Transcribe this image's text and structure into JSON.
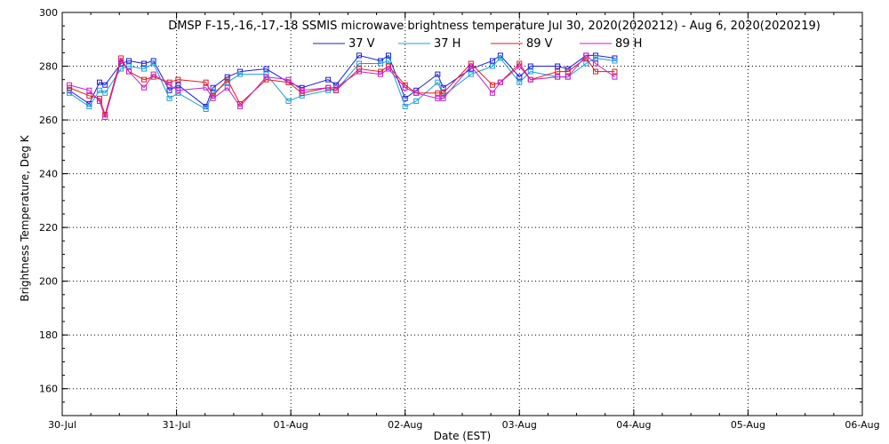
{
  "chart_data": {
    "type": "line",
    "title": "DMSP F-15,-16,-17,-18 SSMIS microwave brightness temperature Jul 30, 2020(2020212) - Aug  6, 2020(2020219)",
    "xlabel": "Date (EST)",
    "ylabel": "Brightness Temperature, Deg K",
    "ylim": [
      150,
      300
    ],
    "yticks": [
      160,
      180,
      200,
      220,
      240,
      260,
      280,
      300
    ],
    "xlim": [
      "2020-07-30 00:00",
      "2020-08-06 00:00"
    ],
    "xticks": [
      "30-Jul",
      "31-Jul",
      "01-Aug",
      "02-Aug",
      "03-Aug",
      "04-Aug",
      "05-Aug",
      "06-Aug"
    ],
    "grid": true,
    "legend": "top-center",
    "colors": {
      "37 V": "#1c1cd8",
      "37 H": "#1aa0dc",
      "89 V": "#e01c1c",
      "89 H": "#c81ec8"
    },
    "x": [
      "2020-07-30 01:30",
      "2020-07-30 05:40",
      "2020-07-30 07:50",
      "2020-07-30 09:00",
      "2020-07-30 12:20",
      "2020-07-30 14:00",
      "2020-07-30 17:10",
      "2020-07-30 19:10",
      "2020-07-30 22:30",
      "2020-07-31 00:20",
      "2020-07-31 06:10",
      "2020-07-31 07:40",
      "2020-07-31 10:40",
      "2020-07-31 13:20",
      "2020-07-31 18:50",
      "2020-07-31 23:30",
      "2020-08-01 02:20",
      "2020-08-01 07:50",
      "2020-08-01 09:30",
      "2020-08-01 14:20",
      "2020-08-01 18:50",
      "2020-08-01 20:30",
      "2020-08-02 00:00",
      "2020-08-02 02:20",
      "2020-08-02 06:50",
      "2020-08-02 08:00",
      "2020-08-02 13:50",
      "2020-08-02 18:20",
      "2020-08-02 20:00",
      "2020-08-03 00:00",
      "2020-08-03 02:20",
      "2020-08-03 08:00",
      "2020-08-03 10:10",
      "2020-08-03 14:00",
      "2020-08-03 16:00",
      "2020-08-03 20:00"
    ],
    "series": [
      {
        "name": "37 V",
        "values": [
          271,
          266,
          274,
          273,
          281,
          282,
          281,
          282,
          271,
          273,
          265,
          272,
          276,
          278,
          279,
          274,
          272,
          275,
          273,
          284,
          282,
          284,
          268,
          271,
          277,
          272,
          279,
          282,
          284,
          276,
          280,
          280,
          279,
          284,
          284,
          283
        ]
      },
      {
        "name": "37 H",
        "values": [
          270,
          265,
          271,
          270,
          279,
          280,
          279,
          281,
          268,
          270,
          264,
          270,
          274,
          277,
          277,
          267,
          269,
          271,
          271,
          281,
          281,
          282,
          265,
          267,
          274,
          269,
          277,
          280,
          283,
          274,
          278,
          276,
          276,
          281,
          283,
          282
        ]
      },
      {
        "name": "89 V",
        "values": [
          272,
          269,
          268,
          262,
          283,
          278,
          275,
          276,
          274,
          275,
          274,
          269,
          275,
          266,
          275,
          274,
          270,
          272,
          271,
          279,
          278,
          280,
          273,
          270,
          270,
          270,
          281,
          273,
          274,
          281,
          275,
          278,
          278,
          283,
          278,
          278
        ]
      },
      {
        "name": "89 H",
        "values": [
          273,
          271,
          267,
          261,
          282,
          278,
          272,
          277,
          273,
          271,
          272,
          268,
          272,
          265,
          276,
          275,
          271,
          272,
          272,
          278,
          277,
          279,
          272,
          270,
          268,
          268,
          280,
          270,
          274,
          280,
          275,
          276,
          276,
          284,
          281,
          276
        ]
      }
    ]
  }
}
